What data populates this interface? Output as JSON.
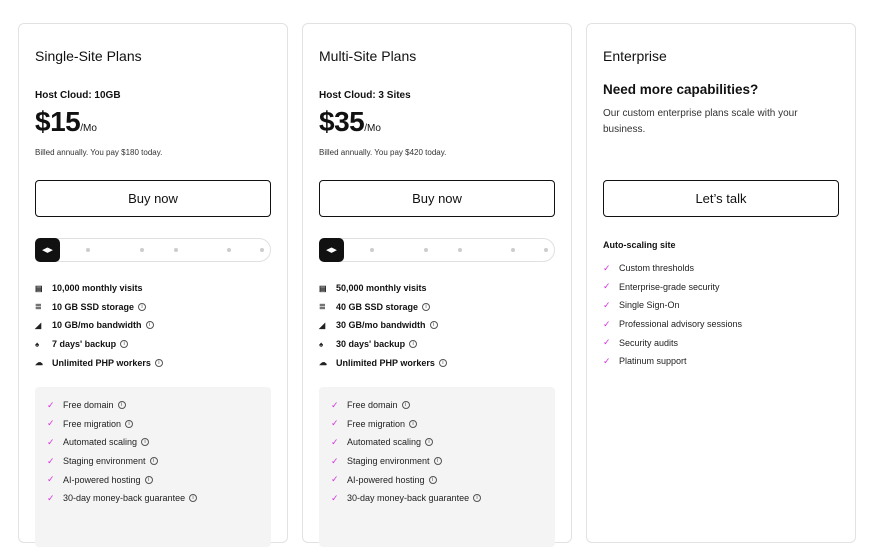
{
  "accent_color": "#d62ee0",
  "plans": [
    {
      "title": "Single-Site Plans",
      "host": "Host Cloud: 10GB",
      "price": "$15",
      "period": "/Mo",
      "billed": "Billed annually. You pay $180 today.",
      "button": "Buy now",
      "slider_position": 0,
      "features": [
        {
          "icon": "visits-icon",
          "glyph": "▤",
          "text": "10,000 monthly visits",
          "info": false
        },
        {
          "icon": "storage-icon",
          "glyph": "≣",
          "text": "10 GB SSD storage",
          "info": true
        },
        {
          "icon": "bandwidth-icon",
          "glyph": "◢",
          "text": "10 GB/mo bandwidth",
          "info": true
        },
        {
          "icon": "backup-icon",
          "glyph": "♠",
          "text": "7 days' backup",
          "info": true
        },
        {
          "icon": "php-workers-icon",
          "glyph": "☁",
          "text": "Unlimited PHP workers",
          "info": true
        }
      ],
      "perks": [
        "Free domain",
        "Free migration",
        "Automated scaling",
        "Staging environment",
        "AI-powered hosting",
        "30-day money-back guarantee"
      ]
    },
    {
      "title": "Multi-Site Plans",
      "host": "Host Cloud: 3 Sites",
      "price": "$35",
      "period": "/Mo",
      "billed": "Billed annually. You pay $420 today.",
      "button": "Buy now",
      "slider_position": 0,
      "features": [
        {
          "icon": "visits-icon",
          "glyph": "▤",
          "text": "50,000 monthly visits",
          "info": false
        },
        {
          "icon": "storage-icon",
          "glyph": "≣",
          "text": "40 GB SSD storage",
          "info": true
        },
        {
          "icon": "bandwidth-icon",
          "glyph": "◢",
          "text": "30 GB/mo bandwidth",
          "info": true
        },
        {
          "icon": "backup-icon",
          "glyph": "♠",
          "text": "30 days' backup",
          "info": true
        },
        {
          "icon": "php-workers-icon",
          "glyph": "☁",
          "text": "Unlimited PHP workers",
          "info": true
        }
      ],
      "perks": [
        "Free domain",
        "Free migration",
        "Automated scaling",
        "Staging environment",
        "AI-powered hosting",
        "30-day money-back guarantee"
      ]
    }
  ],
  "enterprise": {
    "title": "Enterprise",
    "heading": "Need more capabilities?",
    "description": "Our custom enterprise plans scale with your business.",
    "button": "Let’s talk",
    "subheading": "Auto-scaling site",
    "items": [
      "Custom thresholds",
      "Enterprise-grade security",
      "Single Sign-On",
      "Professional advisory sessions",
      "Security audits",
      "Platinum support"
    ]
  }
}
